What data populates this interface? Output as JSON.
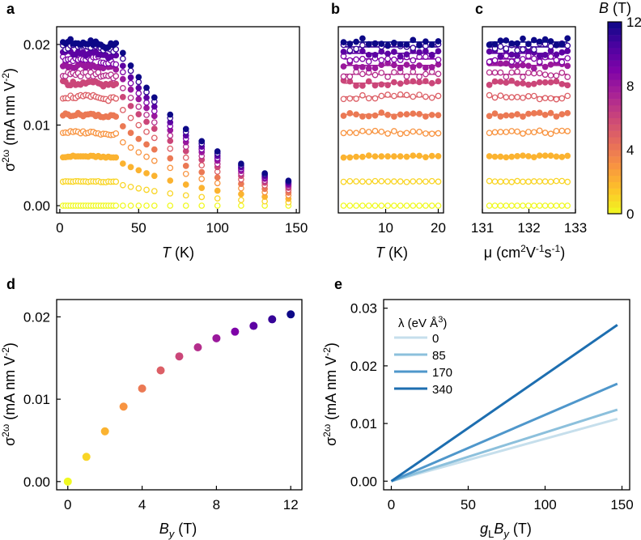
{
  "figure": {
    "panels": [
      {
        "id": "a",
        "letter": "a"
      },
      {
        "id": "b",
        "letter": "b"
      },
      {
        "id": "c",
        "letter": "c"
      },
      {
        "id": "d",
        "letter": "d"
      },
      {
        "id": "e",
        "letter": "e"
      }
    ]
  },
  "colorbar": {
    "title": "B (T)",
    "title_var": "B",
    "title_unit": " (T)",
    "ticks": [
      0,
      4,
      8,
      12
    ],
    "range": [
      0,
      12
    ],
    "colormap": "plasma-reversed",
    "colors": [
      "#f0f921",
      "#fdc328",
      "#f89441",
      "#e56b5d",
      "#cb4679",
      "#a82296",
      "#7e03a8",
      "#4c02a1",
      "#0d0887"
    ]
  },
  "chart_data": [
    {
      "id": "a",
      "type": "scatter",
      "xlabel": "T (K)",
      "xlabel_var": "T",
      "xlabel_unit": " (K)",
      "ylabel": "σ2ω (mA nm V-2)",
      "xlim": [
        -2,
        152
      ],
      "ylim": [
        -0.0009,
        0.0222
      ],
      "xticks": [
        0,
        50,
        100,
        150
      ],
      "yticks": [
        0.0,
        0.01,
        0.02
      ],
      "ytick_labels": [
        "0.00",
        "0.01",
        "0.02"
      ],
      "grid": false,
      "fields_T": [
        0,
        1,
        2,
        3,
        4,
        5,
        6,
        7,
        8,
        9,
        10,
        11,
        12
      ],
      "sigma_low_T": [
        0,
        0.003,
        0.0061,
        0.0091,
        0.0113,
        0.0135,
        0.0152,
        0.0163,
        0.0174,
        0.0182,
        0.0189,
        0.0197,
        0.0203
      ],
      "marker_style": "odd B hollow, even B filled",
      "note": "sigma rises linearly with T deviation below ~40 K then decays toward 145 K"
    },
    {
      "id": "b",
      "type": "scatter",
      "xlabel": "T (K)",
      "xlabel_var": "T",
      "xlabel_unit": " (K)",
      "xlim": [
        1,
        21
      ],
      "ylim": [
        -0.0009,
        0.0222
      ],
      "xticks": [
        10,
        20
      ],
      "fit_lines": "horizontal line per field"
    },
    {
      "id": "c",
      "type": "scatter",
      "xlabel": "μ (cm2V-1s-1)",
      "xlim": [
        131,
        133
      ],
      "ylim": [
        -0.0009,
        0.0222
      ],
      "xticks": [
        131,
        132,
        133
      ],
      "fit_lines": "horizontal line per field"
    },
    {
      "id": "d",
      "type": "scatter",
      "xlabel": "By (T)",
      "xlabel_var": "B",
      "xlabel_sub": "y",
      "xlabel_unit": " (T)",
      "ylabel": "σ2ω (mA nm V-2)",
      "xlim": [
        -0.6,
        12.6
      ],
      "ylim": [
        -0.001,
        0.0221
      ],
      "xticks": [
        0,
        4,
        8,
        12
      ],
      "yticks": [
        0.0,
        0.01,
        0.02
      ],
      "ytick_labels": [
        "0.00",
        "0.01",
        "0.02"
      ],
      "x": [
        0,
        1,
        2,
        3,
        4,
        5,
        6,
        7,
        8,
        9,
        10,
        11,
        12
      ],
      "y": [
        0,
        0.003,
        0.0061,
        0.0091,
        0.0113,
        0.0135,
        0.0152,
        0.0163,
        0.0174,
        0.0182,
        0.0189,
        0.0197,
        0.0203
      ]
    },
    {
      "id": "e",
      "type": "line",
      "xlabel": "gLBy (T)",
      "xlabel_var": "g",
      "xlabel_sub1": "L",
      "xlabel_var2": "B",
      "xlabel_sub2": "y",
      "xlabel_unit": " (T)",
      "ylabel": "σ2ω (mA nm V-2)",
      "xlim": [
        -5,
        155
      ],
      "ylim": [
        -0.0015,
        0.0315
      ],
      "xticks": [
        0,
        50,
        100,
        150
      ],
      "yticks": [
        0.0,
        0.01,
        0.02,
        0.03
      ],
      "ytick_labels": [
        "0.00",
        "0.01",
        "0.02",
        "0.03"
      ],
      "legend": {
        "title": "λ (eV Å3)",
        "title_pre": "λ (eV Å",
        "title_sup": "3",
        "title_post": ")",
        "placement": "upper-left"
      },
      "series": [
        {
          "name": "0",
          "x": [
            0,
            147
          ],
          "y": [
            0,
            0.0108
          ],
          "color": "#c6dfec"
        },
        {
          "name": "85",
          "x": [
            0,
            147
          ],
          "y": [
            0,
            0.0124
          ],
          "color": "#8cc0dc"
        },
        {
          "name": "170",
          "x": [
            0,
            147
          ],
          "y": [
            0,
            0.0169
          ],
          "color": "#4f97cb"
        },
        {
          "name": "340",
          "x": [
            0,
            147
          ],
          "y": [
            0,
            0.0271
          ],
          "color": "#1d6eb0"
        }
      ]
    }
  ]
}
